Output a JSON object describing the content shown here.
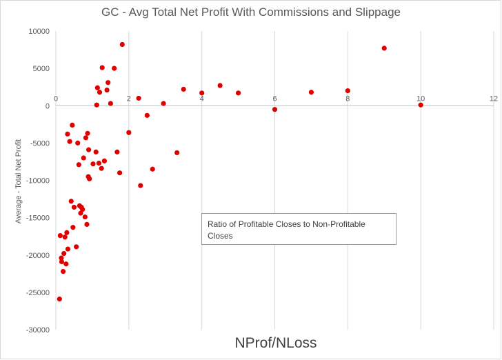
{
  "chart_data": {
    "type": "scatter",
    "title": "GC - Avg Total Net Profit With Commissions and Slippage",
    "xlabel": "NProf/NLoss",
    "ylabel": "Average - Total Net Profit",
    "xlim": [
      0,
      12
    ],
    "ylim": [
      -30000,
      10000
    ],
    "x_ticks": [
      "0",
      "2",
      "4",
      "6",
      "8",
      "10",
      "12"
    ],
    "y_ticks": [
      "10000",
      "5000",
      "0",
      "-5000",
      "-10000",
      "-15000",
      "-20000",
      "-25000",
      "-30000"
    ],
    "grid": "vertical",
    "marker_color": "#e00000",
    "annotation": "Ratio of Profitable Closes to Non-Profitable Closes",
    "series": [
      {
        "points": [
          [
            0.12,
            -17400
          ],
          [
            0.15,
            -20400
          ],
          [
            0.16,
            -20900
          ],
          [
            0.2,
            -22200
          ],
          [
            0.22,
            -19800
          ],
          [
            0.25,
            -17600
          ],
          [
            0.28,
            -21200
          ],
          [
            0.3,
            -17000
          ],
          [
            0.33,
            -19200
          ],
          [
            0.32,
            -3800
          ],
          [
            0.38,
            -4800
          ],
          [
            0.42,
            -12800
          ],
          [
            0.45,
            -2600
          ],
          [
            0.47,
            -16300
          ],
          [
            0.5,
            -13600
          ],
          [
            0.56,
            -18900
          ],
          [
            0.6,
            -5000
          ],
          [
            0.63,
            -7900
          ],
          [
            0.65,
            -13400
          ],
          [
            0.68,
            -14400
          ],
          [
            0.7,
            -13600
          ],
          [
            0.73,
            -13900
          ],
          [
            0.76,
            -7000
          ],
          [
            0.8,
            -14900
          ],
          [
            0.82,
            -4300
          ],
          [
            0.85,
            -15900
          ],
          [
            0.87,
            -3700
          ],
          [
            0.89,
            -9500
          ],
          [
            0.9,
            -5900
          ],
          [
            0.92,
            -9800
          ],
          [
            1.02,
            -7800
          ],
          [
            1.1,
            -6200
          ],
          [
            1.12,
            100
          ],
          [
            1.14,
            2400
          ],
          [
            1.18,
            -7700
          ],
          [
            1.2,
            1800
          ],
          [
            1.25,
            -8400
          ],
          [
            1.27,
            5100
          ],
          [
            1.33,
            -7400
          ],
          [
            1.4,
            2100
          ],
          [
            1.43,
            3100
          ],
          [
            1.5,
            300
          ],
          [
            1.6,
            5000
          ],
          [
            1.68,
            -6200
          ],
          [
            1.75,
            -9000
          ],
          [
            1.82,
            8200
          ],
          [
            2.0,
            -3600
          ],
          [
            2.27,
            1000
          ],
          [
            2.32,
            -10700
          ],
          [
            2.5,
            -1300
          ],
          [
            2.65,
            -8500
          ],
          [
            2.95,
            300
          ],
          [
            3.32,
            -6300
          ],
          [
            3.5,
            2200
          ],
          [
            4.0,
            1700
          ],
          [
            4.5,
            2700
          ],
          [
            5.0,
            1700
          ],
          [
            6.0,
            -500
          ],
          [
            7.0,
            1800
          ],
          [
            8.0,
            2000
          ],
          [
            9.0,
            7700
          ],
          [
            10.0,
            100
          ],
          [
            0.1,
            -25900
          ]
        ]
      }
    ]
  }
}
